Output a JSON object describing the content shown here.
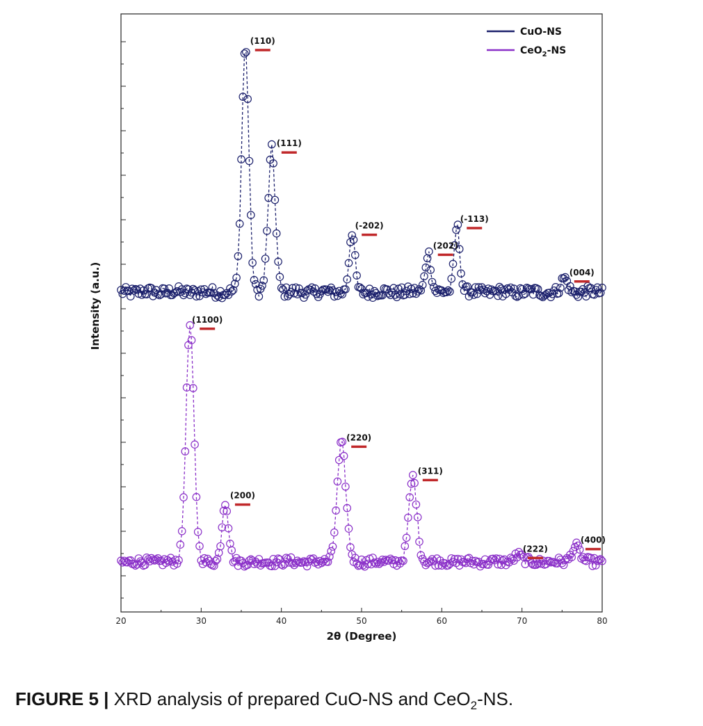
{
  "chart_data": {
    "type": "scatter",
    "xlabel": "2θ (Degree)",
    "ylabel": "Intensity (a.u.)",
    "xlim": [
      20,
      80
    ],
    "xticks": [
      20,
      30,
      40,
      50,
      60,
      70,
      80
    ],
    "y_tick_labels": "none",
    "grid": false,
    "legend_position": "top-right",
    "line_style": "dashed with open circle markers",
    "colors": {
      "CuO-NS": "#1a1f6b",
      "CeO2-NS": "#8a2fc8",
      "peak_marker": "#c0282a"
    },
    "series": [
      {
        "name": "CuO-NS",
        "legend_main": "CuO-NS",
        "baseline": 0.83,
        "noise": 0.01,
        "peaks": [
          {
            "x": 35.5,
            "height": 5.5,
            "width": 0.45,
            "label": "(110)"
          },
          {
            "x": 38.8,
            "height": 3.2,
            "width": 0.45,
            "label": "(111)"
          },
          {
            "x": 48.8,
            "height": 1.35,
            "width": 0.35,
            "label": "(-202)"
          },
          {
            "x": 58.3,
            "height": 0.9,
            "width": 0.35,
            "label": "(202)"
          },
          {
            "x": 61.9,
            "height": 1.5,
            "width": 0.35,
            "label": "(-113)"
          },
          {
            "x": 75.3,
            "height": 0.3,
            "width": 0.4,
            "label": "(004)"
          }
        ]
      },
      {
        "name": "CeO2-NS",
        "legend_main": "CeO",
        "legend_sub": "2",
        "legend_suffix": "-NS",
        "baseline": 0.03,
        "noise": 0.008,
        "peaks": [
          {
            "x": 28.6,
            "height": 5.3,
            "width": 0.5,
            "label": "(1100)"
          },
          {
            "x": 33.0,
            "height": 1.35,
            "width": 0.4,
            "label": "(200)"
          },
          {
            "x": 47.5,
            "height": 2.65,
            "width": 0.55,
            "label": "(220)"
          },
          {
            "x": 56.4,
            "height": 1.9,
            "width": 0.5,
            "label": "(311)"
          },
          {
            "x": 69.5,
            "height": 0.15,
            "width": 0.5,
            "label": "(222)"
          },
          {
            "x": 76.7,
            "height": 0.35,
            "width": 0.5,
            "label": "(400)"
          }
        ]
      }
    ]
  },
  "caption": {
    "figure_number": "FIGURE 5 |",
    "text_before": " XRD analysis of prepared CuO-NS and CeO",
    "sub": "2",
    "text_after": "-NS."
  }
}
